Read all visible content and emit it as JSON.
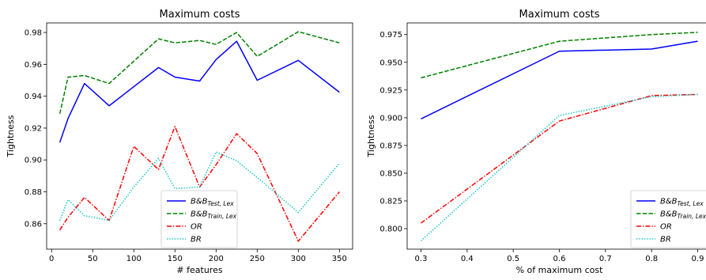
{
  "chart_data": [
    {
      "type": "line",
      "title": "Maximum costs",
      "xlabel": "# features",
      "ylabel": "Tightness",
      "xlim": [
        -6,
        366
      ],
      "ylim": [
        0.844,
        0.986
      ],
      "xticks": [
        0,
        50,
        100,
        150,
        200,
        250,
        300,
        350
      ],
      "yticks": [
        0.86,
        0.88,
        0.9,
        0.92,
        0.94,
        0.96,
        0.98
      ],
      "ytick_labels": [
        "0.86",
        "0.88",
        "0.90",
        "0.92",
        "0.94",
        "0.96",
        "0.98"
      ],
      "legend_position": "lower center",
      "series": [
        {
          "name": "B&B",
          "sub": "Test, Lex",
          "color": "#0000ff",
          "dash": "solid",
          "x": [
            10,
            20,
            40,
            70,
            100,
            130,
            150,
            180,
            200,
            225,
            250,
            300,
            350
          ],
          "y": [
            0.911,
            0.926,
            0.948,
            0.934,
            0.946,
            0.958,
            0.952,
            0.9495,
            0.963,
            0.9745,
            0.95,
            0.9625,
            0.9425
          ]
        },
        {
          "name": "B&B",
          "sub": "Train, Lex",
          "color": "#008000",
          "dash": "dashed",
          "x": [
            10,
            20,
            40,
            70,
            100,
            130,
            150,
            180,
            200,
            225,
            250,
            300,
            350
          ],
          "y": [
            0.929,
            0.952,
            0.953,
            0.948,
            0.962,
            0.976,
            0.9735,
            0.975,
            0.9725,
            0.98,
            0.965,
            0.9805,
            0.9735
          ]
        },
        {
          "name": "OR",
          "sub": "",
          "color": "#ff0000",
          "dash": "dashdot",
          "x": [
            10,
            20,
            40,
            70,
            100,
            130,
            150,
            180,
            200,
            225,
            250,
            300,
            350
          ],
          "y": [
            0.856,
            0.864,
            0.8765,
            0.862,
            0.9085,
            0.894,
            0.921,
            0.883,
            0.897,
            0.9165,
            0.904,
            0.849,
            0.88
          ]
        },
        {
          "name": "BR",
          "sub": "",
          "color": "#00bfbf",
          "dash": "dotted",
          "x": [
            10,
            20,
            40,
            70,
            100,
            130,
            150,
            180,
            200,
            225,
            250,
            300,
            350
          ],
          "y": [
            0.862,
            0.875,
            0.865,
            0.862,
            0.883,
            0.901,
            0.882,
            0.883,
            0.905,
            0.8995,
            0.889,
            0.867,
            0.898
          ]
        }
      ]
    },
    {
      "type": "line",
      "title": "Maximum costs",
      "xlabel": "% of maximum cost",
      "ylabel": "Tightness",
      "xlim": [
        0.27,
        0.93
      ],
      "ylim": [
        0.7815,
        0.9855
      ],
      "xticks": [
        0.3,
        0.4,
        0.5,
        0.6,
        0.7,
        0.8,
        0.9
      ],
      "xtick_labels": [
        "0.3",
        "0.4",
        "0.5",
        "0.6",
        "0.7",
        "0.8",
        "0.9"
      ],
      "yticks": [
        0.8,
        0.825,
        0.85,
        0.875,
        0.9,
        0.925,
        0.95,
        0.975
      ],
      "ytick_labels": [
        "0.800",
        "0.825",
        "0.850",
        "0.875",
        "0.900",
        "0.925",
        "0.950",
        "0.975"
      ],
      "legend_position": "lower right",
      "series": [
        {
          "name": "B&B",
          "sub": "Test, Lex",
          "color": "#0000ff",
          "dash": "solid",
          "x": [
            0.3,
            0.6,
            0.8,
            0.9
          ],
          "y": [
            0.899,
            0.96,
            0.962,
            0.969
          ]
        },
        {
          "name": "B&B",
          "sub": "Train, Lex",
          "color": "#008000",
          "dash": "dashed",
          "x": [
            0.3,
            0.6,
            0.8,
            0.9
          ],
          "y": [
            0.936,
            0.969,
            0.975,
            0.977
          ]
        },
        {
          "name": "OR",
          "sub": "",
          "color": "#ff0000",
          "dash": "dashdot",
          "x": [
            0.3,
            0.6,
            0.8,
            0.9
          ],
          "y": [
            0.805,
            0.897,
            0.92,
            0.921
          ]
        },
        {
          "name": "BR",
          "sub": "",
          "color": "#00bfbf",
          "dash": "dotted",
          "x": [
            0.3,
            0.6,
            0.8,
            0.9
          ],
          "y": [
            0.789,
            0.902,
            0.919,
            0.921
          ]
        }
      ]
    }
  ]
}
